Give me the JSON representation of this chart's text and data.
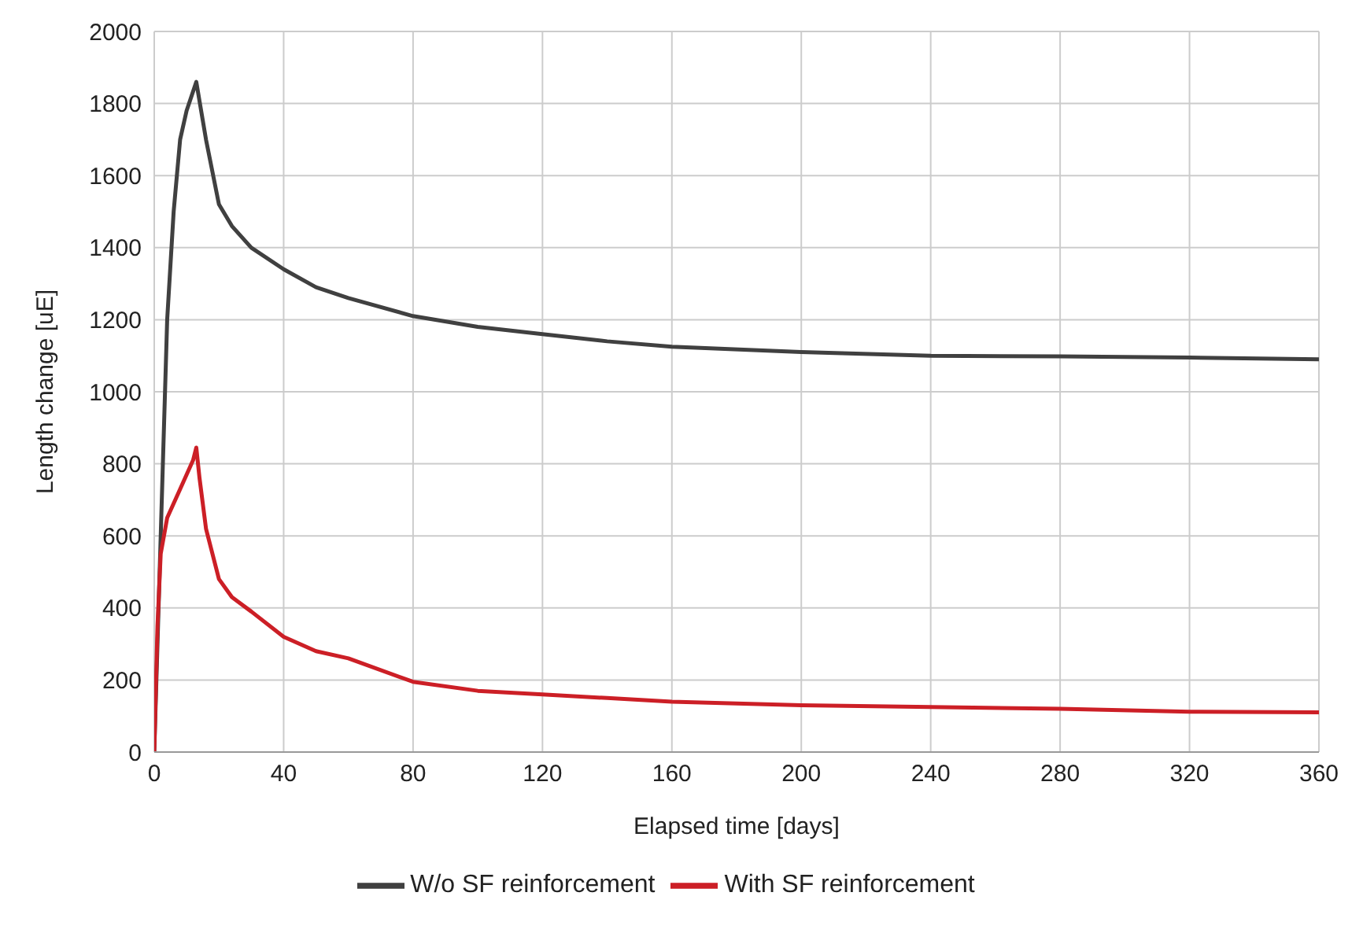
{
  "chart_data": {
    "type": "line",
    "xlabel": "Elapsed time [days]",
    "ylabel": "Length change [uE]",
    "xlim": [
      0,
      360
    ],
    "xticks": [
      0,
      40,
      80,
      120,
      160,
      200,
      240,
      280,
      320,
      360
    ],
    "ylim": [
      0,
      2000
    ],
    "yticks": [
      0,
      200,
      400,
      600,
      800,
      1000,
      1200,
      1400,
      1600,
      1800,
      2000
    ],
    "grid": true,
    "legend": "bottom",
    "marker": "none",
    "series": [
      {
        "name": "W/o SF reinforcement",
        "color": "#404040",
        "x": [
          0,
          2,
          4,
          6,
          8,
          10,
          13,
          16,
          20,
          24,
          30,
          40,
          50,
          60,
          80,
          100,
          120,
          140,
          160,
          200,
          240,
          280,
          320,
          360
        ],
        "values": [
          0,
          600,
          1200,
          1500,
          1700,
          1780,
          1860,
          1700,
          1520,
          1460,
          1400,
          1340,
          1290,
          1260,
          1210,
          1180,
          1160,
          1140,
          1125,
          1110,
          1100,
          1098,
          1095,
          1090
        ]
      },
      {
        "name": "With SF reinforcement",
        "color": "#cc1f26",
        "x": [
          0,
          1,
          2,
          4,
          8,
          12,
          13,
          14,
          16,
          20,
          24,
          30,
          40,
          50,
          60,
          80,
          100,
          120,
          140,
          160,
          200,
          240,
          280,
          320,
          360
        ],
        "values": [
          0,
          350,
          550,
          650,
          730,
          810,
          845,
          760,
          620,
          480,
          430,
          390,
          320,
          280,
          260,
          195,
          170,
          160,
          150,
          140,
          130,
          125,
          120,
          112,
          110
        ]
      }
    ]
  }
}
